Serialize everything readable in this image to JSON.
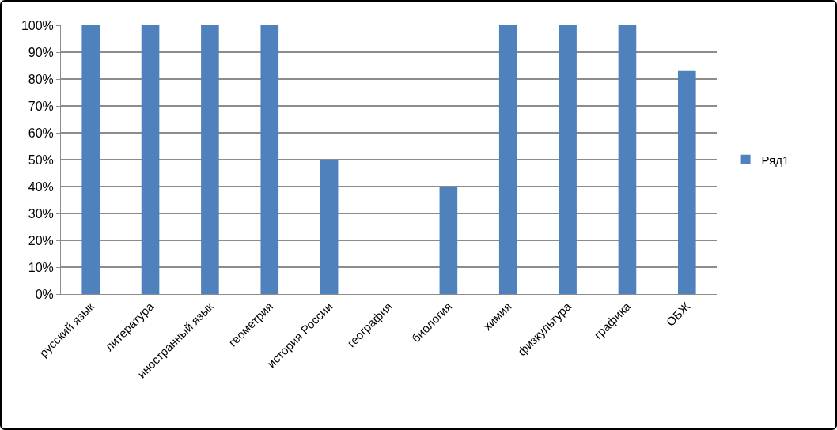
{
  "chart_data": {
    "type": "bar",
    "categories": [
      "русский язык",
      "литература",
      "иностранный язык",
      "геометрия",
      "история России",
      "география",
      "биология",
      "химия",
      "физкультура",
      "графика",
      "ОБЖ"
    ],
    "series": [
      {
        "name": "Ряд1",
        "color": "#4f81bd",
        "values": [
          100,
          100,
          100,
          100,
          50,
          0,
          40,
          100,
          100,
          100,
          83
        ]
      }
    ],
    "ylim": [
      0,
      100
    ],
    "yticks": [
      {
        "value": 0,
        "label": "0%"
      },
      {
        "value": 10,
        "label": "10%"
      },
      {
        "value": 20,
        "label": "20%"
      },
      {
        "value": 30,
        "label": "30%"
      },
      {
        "value": 40,
        "label": "40%"
      },
      {
        "value": 50,
        "label": "50%"
      },
      {
        "value": 60,
        "label": "60%"
      },
      {
        "value": 70,
        "label": "70%"
      },
      {
        "value": 80,
        "label": "80%"
      },
      {
        "value": 90,
        "label": "90%"
      },
      {
        "value": 100,
        "label": "100%"
      }
    ],
    "grid": "y",
    "legend": "right"
  }
}
